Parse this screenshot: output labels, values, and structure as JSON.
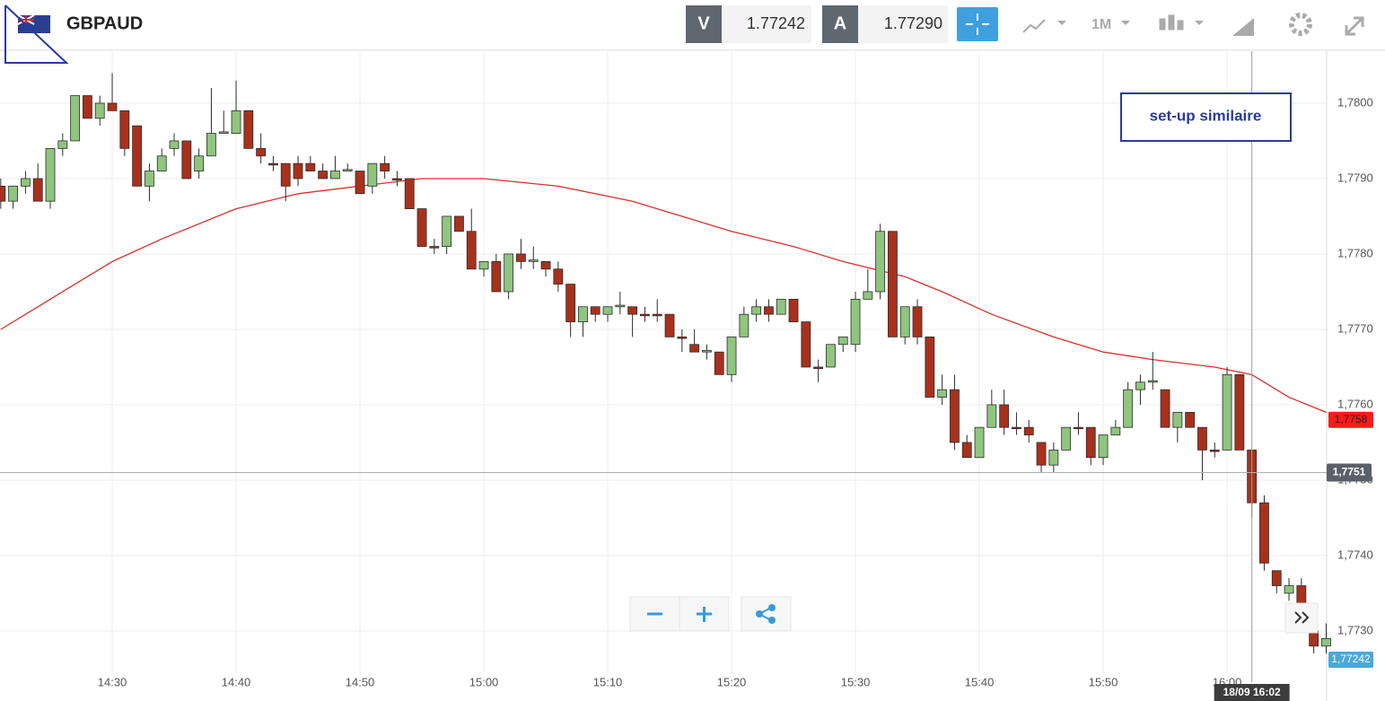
{
  "toolbar": {
    "symbol": "GBPAUD",
    "bid_label": "V",
    "bid": "1.77242",
    "ask_label": "A",
    "ask": "1.77290",
    "timeframe": "1M"
  },
  "chart_data": {
    "type": "candlestick",
    "annotation": "set-up similaire",
    "x": [
      861,
      862,
      863,
      864,
      865,
      866,
      867,
      868,
      869,
      870,
      871,
      872,
      873,
      874,
      875,
      876,
      877,
      878,
      879,
      880,
      881,
      882,
      883,
      884,
      885,
      886,
      887,
      888,
      889,
      890,
      891,
      892,
      893,
      894,
      895,
      896,
      897,
      898,
      899,
      900,
      901,
      902,
      903,
      904,
      905,
      906,
      907,
      908,
      909,
      910,
      911,
      912,
      913,
      914,
      915,
      916,
      917,
      918,
      919,
      920,
      921,
      922,
      923,
      924,
      925,
      926,
      927,
      928,
      929,
      930,
      931,
      932,
      933,
      934,
      935,
      936,
      937,
      938,
      939,
      940,
      941,
      942,
      943,
      944,
      945,
      946,
      947,
      948,
      949,
      950,
      951,
      952,
      953,
      954,
      955,
      956,
      957,
      958,
      959,
      960,
      961,
      962,
      963,
      964,
      965,
      966,
      967,
      968
    ],
    "open": [
      1.7789,
      1.7787,
      1.7789,
      1.779,
      1.7787,
      1.7794,
      1.7795,
      1.7801,
      1.7798,
      1.78,
      1.7799,
      1.7797,
      1.7789,
      1.7791,
      1.7794,
      1.7795,
      1.7791,
      1.7793,
      1.7796,
      1.7796,
      1.7799,
      1.7794,
      1.7792,
      1.7792,
      1.7792,
      1.7792,
      1.7791,
      1.779,
      1.7791,
      1.7791,
      1.7789,
      1.7792,
      1.779,
      1.779,
      1.7786,
      1.7781,
      1.7781,
      1.7785,
      1.7783,
      1.7778,
      1.7779,
      1.7775,
      1.778,
      1.7779,
      1.7779,
      1.7778,
      1.7776,
      1.7771,
      1.7773,
      1.7772,
      1.7773,
      1.7773,
      1.7772,
      1.7772,
      1.7772,
      1.7769,
      1.7768,
      1.7767,
      1.7767,
      1.7764,
      1.7769,
      1.7772,
      1.7773,
      1.7772,
      1.7774,
      1.7771,
      1.7765,
      1.7765,
      1.7768,
      1.7768,
      1.7774,
      1.7775,
      1.7783,
      1.7769,
      1.7773,
      1.7769,
      1.7761,
      1.7762,
      1.7755,
      1.7753,
      1.7757,
      1.776,
      1.7757,
      1.7757,
      1.7755,
      1.7752,
      1.7754,
      1.7757,
      1.7757,
      1.7753,
      1.7756,
      1.7757,
      1.7762,
      1.7763,
      1.7762,
      1.7757,
      1.7759,
      1.7757,
      1.7754,
      1.7754,
      1.7764,
      1.7754,
      1.7747,
      1.7738,
      1.7735,
      1.7736,
      1.773,
      1.7728
    ],
    "high": [
      1.779,
      1.7789,
      1.7791,
      1.7792,
      1.7794,
      1.7796,
      1.7801,
      1.7801,
      1.7801,
      1.7804,
      1.7799,
      1.7797,
      1.7792,
      1.7794,
      1.7796,
      1.7795,
      1.7794,
      1.7802,
      1.7799,
      1.7803,
      1.7799,
      1.7796,
      1.7793,
      1.7792,
      1.7793,
      1.7793,
      1.7792,
      1.7793,
      1.7792,
      1.7791,
      1.7792,
      1.7793,
      1.7791,
      1.779,
      1.7786,
      1.7782,
      1.7785,
      1.7785,
      1.7786,
      1.7779,
      1.778,
      1.778,
      1.7782,
      1.7781,
      1.7779,
      1.7779,
      1.7776,
      1.7773,
      1.7773,
      1.7773,
      1.7775,
      1.7773,
      1.7773,
      1.7774,
      1.7772,
      1.777,
      1.777,
      1.7768,
      1.7767,
      1.7769,
      1.7773,
      1.7774,
      1.7774,
      1.7774,
      1.7774,
      1.7771,
      1.7766,
      1.7768,
      1.7769,
      1.7775,
      1.7778,
      1.7784,
      1.7783,
      1.7773,
      1.7774,
      1.7769,
      1.7764,
      1.7764,
      1.7756,
      1.7757,
      1.7762,
      1.7762,
      1.7759,
      1.7758,
      1.7755,
      1.7755,
      1.7757,
      1.7759,
      1.7757,
      1.7756,
      1.7758,
      1.7763,
      1.7764,
      1.7767,
      1.7762,
      1.7759,
      1.7759,
      1.7757,
      1.7755,
      1.7765,
      1.7764,
      1.7754,
      1.7748,
      1.7738,
      1.7737,
      1.7737,
      1.7731,
      1.7731
    ],
    "low": [
      1.7786,
      1.7786,
      1.7788,
      1.7787,
      1.7786,
      1.7793,
      1.7795,
      1.7798,
      1.7797,
      1.7799,
      1.7793,
      1.7789,
      1.7787,
      1.7791,
      1.7793,
      1.779,
      1.779,
      1.7793,
      1.7796,
      1.7796,
      1.7794,
      1.7792,
      1.7791,
      1.7787,
      1.7789,
      1.7791,
      1.779,
      1.779,
      1.7791,
      1.7788,
      1.7788,
      1.779,
      1.7789,
      1.7786,
      1.7781,
      1.778,
      1.778,
      1.7783,
      1.7778,
      1.7777,
      1.7775,
      1.7774,
      1.7778,
      1.7778,
      1.7777,
      1.7775,
      1.7769,
      1.7769,
      1.7771,
      1.7771,
      1.7772,
      1.7769,
      1.7771,
      1.7771,
      1.7769,
      1.7767,
      1.7767,
      1.7766,
      1.7764,
      1.7763,
      1.7769,
      1.7771,
      1.7771,
      1.7772,
      1.7771,
      1.7765,
      1.7763,
      1.7765,
      1.7767,
      1.7767,
      1.7774,
      1.7774,
      1.7769,
      1.7768,
      1.7768,
      1.7761,
      1.776,
      1.7754,
      1.7753,
      1.7753,
      1.7757,
      1.7756,
      1.7756,
      1.7755,
      1.7751,
      1.7751,
      1.7754,
      1.7756,
      1.7752,
      1.7752,
      1.7756,
      1.7757,
      1.776,
      1.7762,
      1.7757,
      1.7755,
      1.7757,
      1.775,
      1.7753,
      1.7754,
      1.7754,
      1.7745,
      1.7738,
      1.7735,
      1.7734,
      1.7733,
      1.7727,
      1.7727
    ],
    "close": [
      1.7787,
      1.7789,
      1.779,
      1.7787,
      1.7794,
      1.7795,
      1.7801,
      1.7798,
      1.78,
      1.7799,
      1.7794,
      1.7789,
      1.7791,
      1.7793,
      1.7795,
      1.779,
      1.7793,
      1.7796,
      1.77962,
      1.7799,
      1.7794,
      1.7793,
      1.77918,
      1.7789,
      1.779,
      1.7791,
      1.779,
      1.7791,
      1.77912,
      1.7788,
      1.7792,
      1.7791,
      1.77898,
      1.7786,
      1.7781,
      1.77808,
      1.7785,
      1.7783,
      1.7778,
      1.7779,
      1.7775,
      1.778,
      1.7779,
      1.77792,
      1.7778,
      1.7776,
      1.7771,
      1.7773,
      1.7772,
      1.7773,
      1.77732,
      1.7772,
      1.77718,
      1.77718,
      1.7769,
      1.77688,
      1.7767,
      1.77672,
      1.7764,
      1.7769,
      1.7772,
      1.7773,
      1.7772,
      1.7774,
      1.7771,
      1.7765,
      1.77648,
      1.7768,
      1.7769,
      1.7774,
      1.7775,
      1.7783,
      1.7769,
      1.7773,
      1.7769,
      1.7761,
      1.7762,
      1.7755,
      1.7753,
      1.7757,
      1.776,
      1.7757,
      1.7757,
      1.7756,
      1.7752,
      1.7754,
      1.7757,
      1.7757,
      1.7753,
      1.7756,
      1.7757,
      1.7762,
      1.7763,
      1.77632,
      1.7757,
      1.7759,
      1.7757,
      1.7754,
      1.77538,
      1.7764,
      1.7754,
      1.7747,
      1.7739,
      1.7736,
      1.7736,
      1.7733,
      1.7728,
      1.7729
    ],
    "colors": {
      "up": "#8fc57f",
      "down": "#a8311c",
      "wick": "#2b2b2b"
    },
    "moving_average": {
      "color": "#d9302a",
      "x": [
        861,
        864,
        867,
        870,
        874,
        880,
        885,
        890,
        895,
        898,
        900,
        906,
        912,
        916,
        920,
        925,
        929,
        934,
        937,
        941,
        946,
        950,
        954,
        959,
        962,
        965,
        968
      ],
      "values": [
        1.777,
        1.7773,
        1.7776,
        1.7779,
        1.7782,
        1.7786,
        1.7788,
        1.7789,
        1.779,
        1.779,
        1.779,
        1.7789,
        1.7787,
        1.7785,
        1.7783,
        1.7781,
        1.7779,
        1.7777,
        1.7775,
        1.7772,
        1.7769,
        1.7767,
        1.7766,
        1.7765,
        1.7764,
        1.7761,
        1.7759
      ]
    },
    "xlim": [
      860.94,
      968.04
    ],
    "ylim": [
      1.77244,
      1.78069
    ],
    "xticks": [
      {
        "value": 870,
        "label": "14:30"
      },
      {
        "value": 880,
        "label": "14:40"
      },
      {
        "value": 890,
        "label": "14:50"
      },
      {
        "value": 900,
        "label": "15:00"
      },
      {
        "value": 910,
        "label": "15:10"
      },
      {
        "value": 920,
        "label": "15:20"
      },
      {
        "value": 930,
        "label": "15:30"
      },
      {
        "value": 940,
        "label": "15:40"
      },
      {
        "value": 950,
        "label": "15:50"
      },
      {
        "value": 960,
        "label": "16:00"
      }
    ],
    "yticks": [
      {
        "value": 1.773,
        "label": "1,7730"
      },
      {
        "value": 1.774,
        "label": "1,7740"
      },
      {
        "value": 1.775,
        "label": "1,7750"
      },
      {
        "value": 1.776,
        "label": "1,7760"
      },
      {
        "value": 1.777,
        "label": "1,7770"
      },
      {
        "value": 1.778,
        "label": "1,7780"
      },
      {
        "value": 1.779,
        "label": "1,7790"
      },
      {
        "value": 1.78,
        "label": "1,7800"
      }
    ],
    "grid": true,
    "price_tags": [
      {
        "value": 1.7758,
        "label": "1,7758",
        "color": "#ff1a1a"
      },
      {
        "value": 1.77242,
        "label": "1,77242",
        "color": "#4aa8d8"
      }
    ],
    "crosshair": {
      "x": 962,
      "y": 1.7751,
      "x_label": "18/09 16:02",
      "y_label": "1,7751"
    }
  }
}
